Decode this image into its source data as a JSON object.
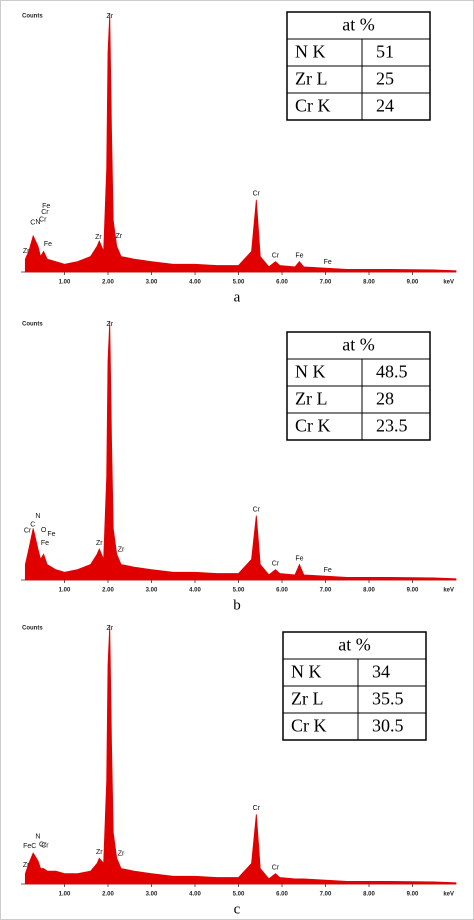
{
  "chart_data": [
    {
      "type": "area",
      "caption": "a",
      "y_label": "Counts",
      "x_label": "keV",
      "color": "#e00000",
      "xlim": [
        0,
        10
      ],
      "ylim": [
        0,
        100
      ],
      "xticks": [
        {
          "value": 1,
          "label": "1.00"
        },
        {
          "value": 2,
          "label": "2.00"
        },
        {
          "value": 3,
          "label": "3.00"
        },
        {
          "value": 4,
          "label": "4.00"
        },
        {
          "value": 5,
          "label": "5.00"
        },
        {
          "value": 6,
          "label": "6.00"
        },
        {
          "value": 7,
          "label": "7.00"
        },
        {
          "value": 8,
          "label": "8.00"
        },
        {
          "value": 9,
          "label": "9.00"
        }
      ],
      "x": [
        0.1,
        0.18,
        0.28,
        0.39,
        0.45,
        0.52,
        0.6,
        0.8,
        1.0,
        1.3,
        1.6,
        1.75,
        1.8,
        1.9,
        1.97,
        2.0,
        2.04,
        2.08,
        2.12,
        2.2,
        2.3,
        2.6,
        3.0,
        3.5,
        4.0,
        4.5,
        5.0,
        5.3,
        5.41,
        5.5,
        5.7,
        5.85,
        5.95,
        6.3,
        6.4,
        6.5,
        7.0,
        7.5,
        8.5,
        9.5,
        10
      ],
      "values": [
        5,
        8,
        14,
        10,
        6,
        8,
        5,
        4,
        3,
        4,
        6,
        10,
        12,
        8,
        40,
        85,
        100,
        55,
        20,
        10,
        6,
        5,
        4,
        3,
        3,
        2.5,
        2.5,
        8,
        28,
        6,
        2,
        4,
        2.5,
        2,
        4,
        2,
        1.5,
        1,
        1,
        0.8,
        0.5
      ],
      "annotations": [
        {
          "text": "Zr",
          "x": 0.12
        },
        {
          "text": "C",
          "x": 0.27
        },
        {
          "text": "N",
          "x": 0.39
        },
        {
          "text": "Fe",
          "x": 0.62
        },
        {
          "text": "Cr",
          "x": 0.5
        },
        {
          "text": "Cr",
          "x": 0.55
        },
        {
          "text": "Fe",
          "x": 0.58
        },
        {
          "text": "Zr",
          "x": 1.78
        },
        {
          "text": "Zr",
          "x": 2.04
        },
        {
          "text": "Zr",
          "x": 2.25
        },
        {
          "text": "Cr",
          "x": 5.41
        },
        {
          "text": "Cr",
          "x": 5.85
        },
        {
          "text": "Fe",
          "x": 6.4
        },
        {
          "text": "Fe",
          "x": 7.05
        }
      ],
      "table": {
        "header": "at %",
        "rows": [
          [
            "N K",
            51
          ],
          [
            "Zr L",
            25
          ],
          [
            "Cr K",
            24
          ]
        ]
      }
    },
    {
      "type": "area",
      "caption": "b",
      "y_label": "Counts",
      "x_label": "keV",
      "color": "#e00000",
      "xlim": [
        0,
        10
      ],
      "ylim": [
        0,
        100
      ],
      "xticks": [
        {
          "value": 1,
          "label": "1.00"
        },
        {
          "value": 2,
          "label": "2.00"
        },
        {
          "value": 3,
          "label": "3.00"
        },
        {
          "value": 4,
          "label": "4.00"
        },
        {
          "value": 5,
          "label": "5.00"
        },
        {
          "value": 6,
          "label": "6.00"
        },
        {
          "value": 7,
          "label": "7.00"
        },
        {
          "value": 8,
          "label": "8.00"
        },
        {
          "value": 9,
          "label": "9.00"
        }
      ],
      "x": [
        0.1,
        0.18,
        0.28,
        0.39,
        0.45,
        0.52,
        0.6,
        0.8,
        1.0,
        1.3,
        1.6,
        1.75,
        1.8,
        1.9,
        1.97,
        2.0,
        2.04,
        2.08,
        2.12,
        2.2,
        2.3,
        2.6,
        3.0,
        3.5,
        4.0,
        4.5,
        5.0,
        5.3,
        5.41,
        5.5,
        5.7,
        5.85,
        5.95,
        6.3,
        6.4,
        6.5,
        7.0,
        7.5,
        8.5,
        9.5,
        10
      ],
      "values": [
        6,
        12,
        20,
        12,
        8,
        10,
        6,
        4,
        3,
        4,
        6,
        10,
        12,
        8,
        40,
        85,
        100,
        55,
        20,
        10,
        6,
        5,
        4,
        3,
        3,
        2.5,
        2.5,
        8,
        25,
        6,
        2,
        4,
        2.5,
        2,
        6,
        2,
        1.5,
        1,
        1,
        0.8,
        0.5
      ],
      "annotations": [
        {
          "text": "C",
          "x": 0.27
        },
        {
          "text": "Fe",
          "x": 0.55
        },
        {
          "text": "O",
          "x": 0.52
        },
        {
          "text": "N",
          "x": 0.39
        },
        {
          "text": "Cr",
          "x": 0.15
        },
        {
          "text": "Fe",
          "x": 0.7
        },
        {
          "text": "Zr",
          "x": 1.8
        },
        {
          "text": "Zr",
          "x": 2.04
        },
        {
          "text": "Zr",
          "x": 2.3
        },
        {
          "text": "Cr",
          "x": 5.41
        },
        {
          "text": "Cr",
          "x": 5.85
        },
        {
          "text": "Fe",
          "x": 6.4
        },
        {
          "text": "Fe",
          "x": 7.05
        }
      ],
      "table": {
        "header": "at %",
        "rows": [
          [
            "N K",
            48.5
          ],
          [
            "Zr L",
            28
          ],
          [
            "Cr K",
            23.5
          ]
        ]
      }
    },
    {
      "type": "area",
      "caption": "c",
      "y_label": "Counts",
      "x_label": "keV",
      "color": "#e00000",
      "xlim": [
        0,
        10
      ],
      "ylim": [
        0,
        100
      ],
      "xticks": [
        {
          "value": 1,
          "label": "1.00"
        },
        {
          "value": 2,
          "label": "2.00"
        },
        {
          "value": 3,
          "label": "3.00"
        },
        {
          "value": 4,
          "label": "4.00"
        },
        {
          "value": 5,
          "label": "5.00"
        },
        {
          "value": 6,
          "label": "6.00"
        },
        {
          "value": 7,
          "label": "7.00"
        },
        {
          "value": 8,
          "label": "8.00"
        },
        {
          "value": 9,
          "label": "9.00"
        }
      ],
      "x": [
        0.1,
        0.18,
        0.28,
        0.39,
        0.45,
        0.52,
        0.6,
        0.8,
        1.0,
        1.3,
        1.6,
        1.75,
        1.8,
        1.9,
        1.97,
        2.0,
        2.04,
        2.08,
        2.12,
        2.2,
        2.3,
        2.6,
        3.0,
        3.5,
        4.0,
        4.5,
        5.0,
        5.3,
        5.41,
        5.5,
        5.7,
        5.85,
        5.95,
        6.3,
        6.4,
        6.5,
        7.0,
        7.5,
        8.5,
        9.5,
        10
      ],
      "values": [
        4,
        8,
        12,
        9,
        6,
        6,
        5,
        5,
        4,
        4,
        5,
        8,
        10,
        8,
        40,
        85,
        100,
        55,
        20,
        10,
        6,
        5,
        4,
        3,
        3,
        2.5,
        2.5,
        8,
        27,
        6,
        2,
        4,
        2.5,
        2,
        2,
        2,
        1.5,
        1,
        1,
        0.8,
        0.5
      ],
      "annotations": [
        {
          "text": "Zr",
          "x": 0.12
        },
        {
          "text": "FeC",
          "x": 0.2
        },
        {
          "text": "N",
          "x": 0.39
        },
        {
          "text": "Cr",
          "x": 0.5
        },
        {
          "text": "Cr",
          "x": 0.55
        },
        {
          "text": "Zr",
          "x": 1.8
        },
        {
          "text": "Zr",
          "x": 2.04
        },
        {
          "text": "Zr",
          "x": 2.3
        },
        {
          "text": "Cr",
          "x": 5.41
        },
        {
          "text": "Cr",
          "x": 5.85
        }
      ],
      "table": {
        "header": "at %",
        "rows": [
          [
            "N K",
            34
          ],
          [
            "Zr L",
            35.5
          ],
          [
            "Cr K",
            30.5
          ]
        ]
      }
    }
  ]
}
